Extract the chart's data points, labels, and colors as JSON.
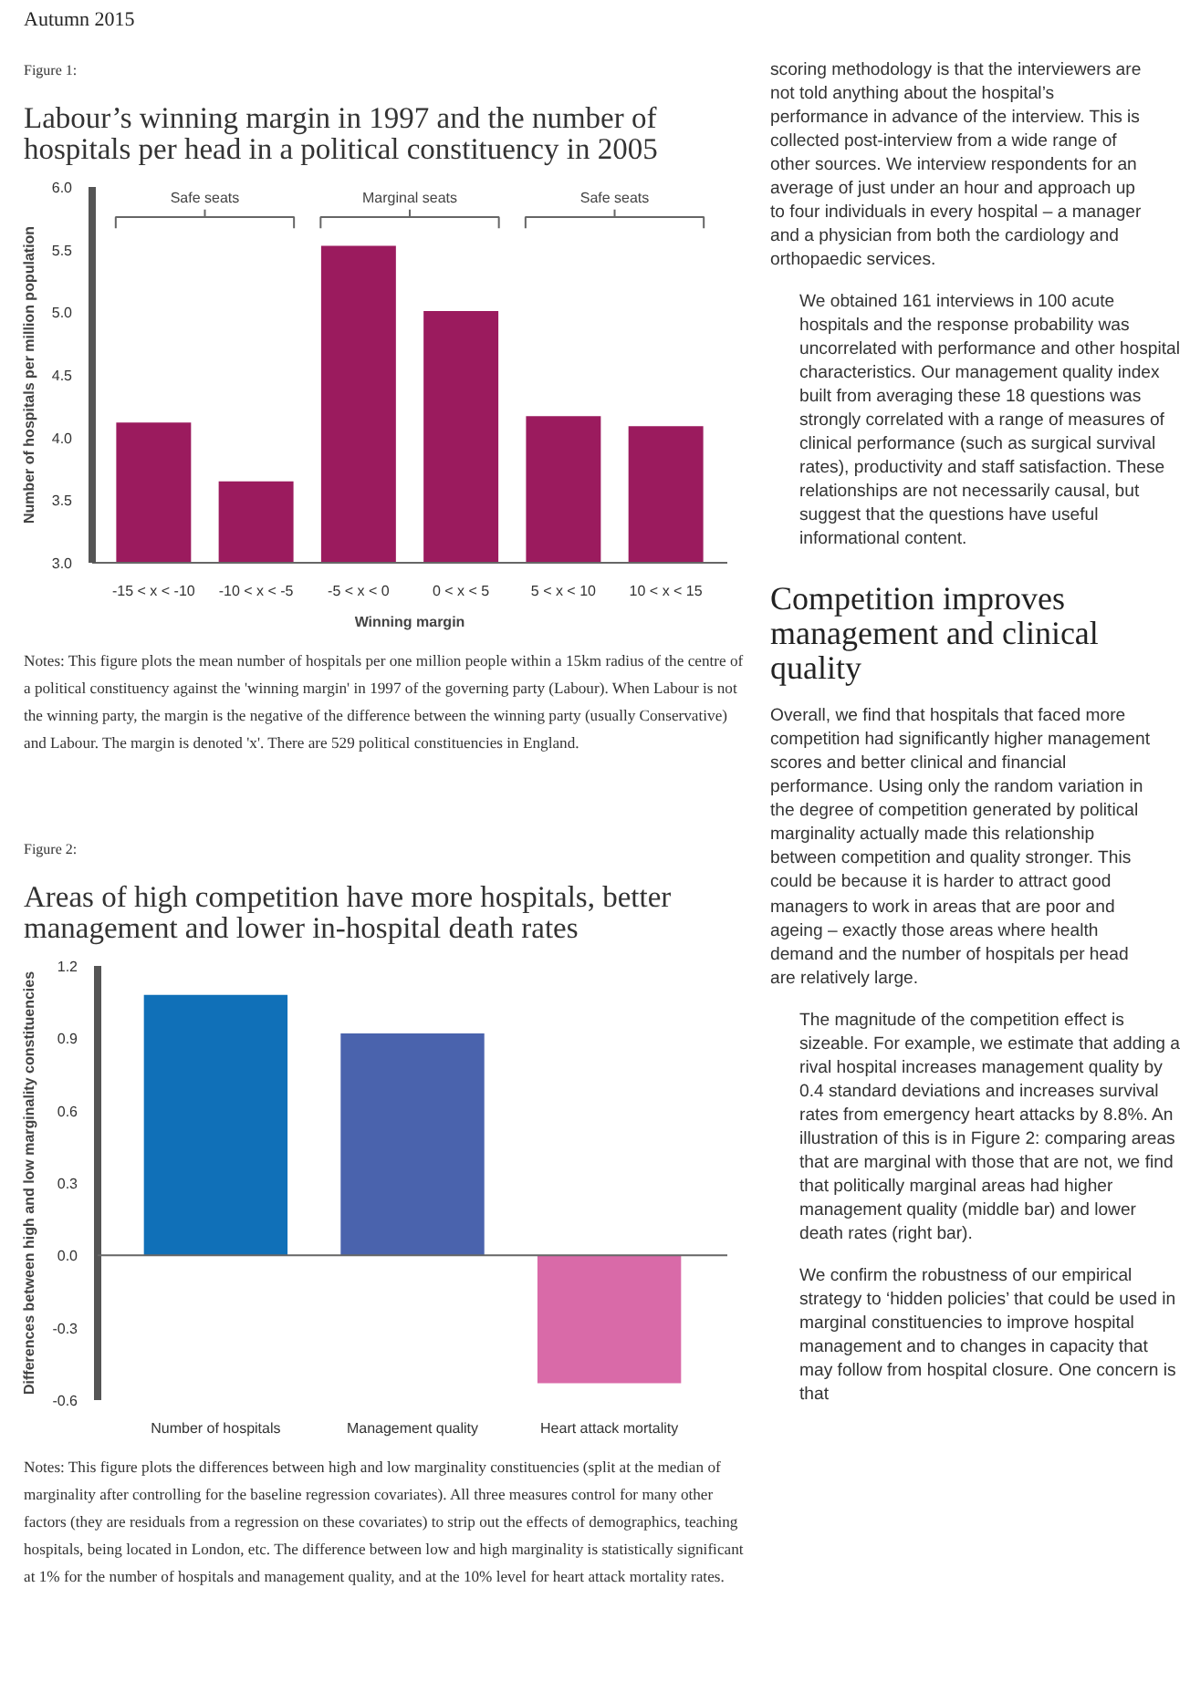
{
  "chart_data": [
    {
      "type": "other",
      "title": "Autumn 2015"
    },
    {
      "type": "bar",
      "title": "Figure 1:",
      "subtitle": "Labour’s winning margin in 1997 and the number of hospitals per head in a political constituency in 2005",
      "categories": [
        "-15 < x < -10",
        "-10 < x < -5",
        "-5 < x < 0",
        "0 < x < 5",
        "5 < x < 10",
        "10 < x < 15"
      ],
      "values": [
        4.12,
        3.65,
        5.53,
        5.01,
        4.17,
        4.09
      ],
      "color": "#9b1b5e",
      "ylim": [
        3.0,
        6.0
      ],
      "yticks": [
        {
          "value": 3.0,
          "label": "3.0"
        },
        {
          "value": 3.5,
          "label": "3.5"
        },
        {
          "value": 4.0,
          "label": "4.0"
        },
        {
          "value": 4.5,
          "label": "4.5"
        },
        {
          "value": 5.0,
          "label": "5.0"
        },
        {
          "value": 5.5,
          "label": "5.5"
        },
        {
          "value": 6.0,
          "label": "6.0"
        }
      ],
      "xlabel": "Winning margin",
      "ylabel": "Number of hospitals per million population",
      "grid": false,
      "annotations": [
        "Safe seats",
        "Marginal seats",
        "Safe seats",
        "Notes: This figure plots the mean number of hospitals per one million people within a 15km radius of the centre of a political constituency against the 'winning margin' in 1997 of the governing party (Labour). When Labour is not the winning party, the margin is the negative of the difference between the winning party (usually Conservative) and Labour. The margin is denoted 'x'. There are 529 political constituencies in England."
      ]
    },
    {
      "type": "bar",
      "title": "Figure 2:",
      "subtitle": "Areas of high competition have more hospitals, better management and lower in-hospital death rates",
      "categories": [
        "Number of hospitals",
        "Management quality",
        "Heart attack mortality"
      ],
      "values": [
        1.08,
        0.92,
        -0.53
      ],
      "colors": [
        "#1070b8",
        "#4a63ad",
        "#d96aa8"
      ],
      "ylim": [
        -0.6,
        1.2
      ],
      "yticks": [
        {
          "value": -0.6,
          "label": "-0.6"
        },
        {
          "value": -0.3,
          "label": "-0.3"
        },
        {
          "value": 0.0,
          "label": "0.0"
        },
        {
          "value": 0.3,
          "label": "0.3"
        },
        {
          "value": 0.6,
          "label": "0.6"
        },
        {
          "value": 0.9,
          "label": "0.9"
        },
        {
          "value": 1.2,
          "label": "1.2"
        }
      ],
      "ylabel": "Differences between high and low marginality constituencies",
      "grid": false,
      "ref_lines": [
        {
          "axis": "y",
          "value": 0.0,
          "color": "#666666",
          "line_style": "solid"
        }
      ],
      "annotations": [
        "Notes: This figure plots the differences between high and low marginality constituencies (split at the median of marginality after controlling for the baseline regression covariates). All three measures control for many other factors (they are residuals from a regression on these covariates) to strip out the effects of demographics, teaching hospitals, being located in London, etc. The difference between low and high marginality is statistically significant at 1% for the number of hospitals and management quality, and at the 10% level for heart attack mortality rates."
      ]
    },
    {
      "type": "other",
      "annotations": [
        "scoring methodology is that the interviewers are not told anything about the hospital’s performance in advance of the interview. This is collected post-interview from a wide range of other sources. We interview respondents for an average of just under an hour and approach up to four individuals in every hospital – a manager and a physician from both the cardiology and orthopaedic services.",
        "We obtained 161 interviews in 100 acute hospitals and the response probability was uncorrelated with performance and other hospital characteristics. Our management quality index built from averaging these 18 questions was strongly correlated with a range of measures of clinical performance (such as surgical survival rates), productivity and staff satisfaction. These relationships are not necessarily causal, but suggest that the questions have useful informational content."
      ]
    },
    {
      "type": "other",
      "title": "Competition improves management and clinical quality",
      "annotations": [
        "Overall, we find that hospitals that faced more competition had significantly higher management scores and better clinical and financial performance. Using only the random variation in the degree of competition generated by political marginality actually made this relationship between competition and quality stronger. This could be because it is harder to attract good managers to work in areas that are poor and ageing – exactly those areas where health demand and the number of hospitals per head are relatively large.",
        "The magnitude of the competition effect is sizeable. For example, we estimate that adding a rival hospital increases management quality by 0.4 standard deviations and increases survival rates from emergency heart attacks by 8.8%. An illustration of this is in Figure 2: comparing areas that are marginal with those that are not, we find that politically marginal areas had higher management quality (middle bar) and lower death rates (right bar).",
        "We confirm the robustness of our empirical strategy to ‘hidden policies’ that could be used in marginal constituencies to improve hospital management and to changes in capacity that may follow from hospital closure. One concern is that"
      ]
    }
  ]
}
